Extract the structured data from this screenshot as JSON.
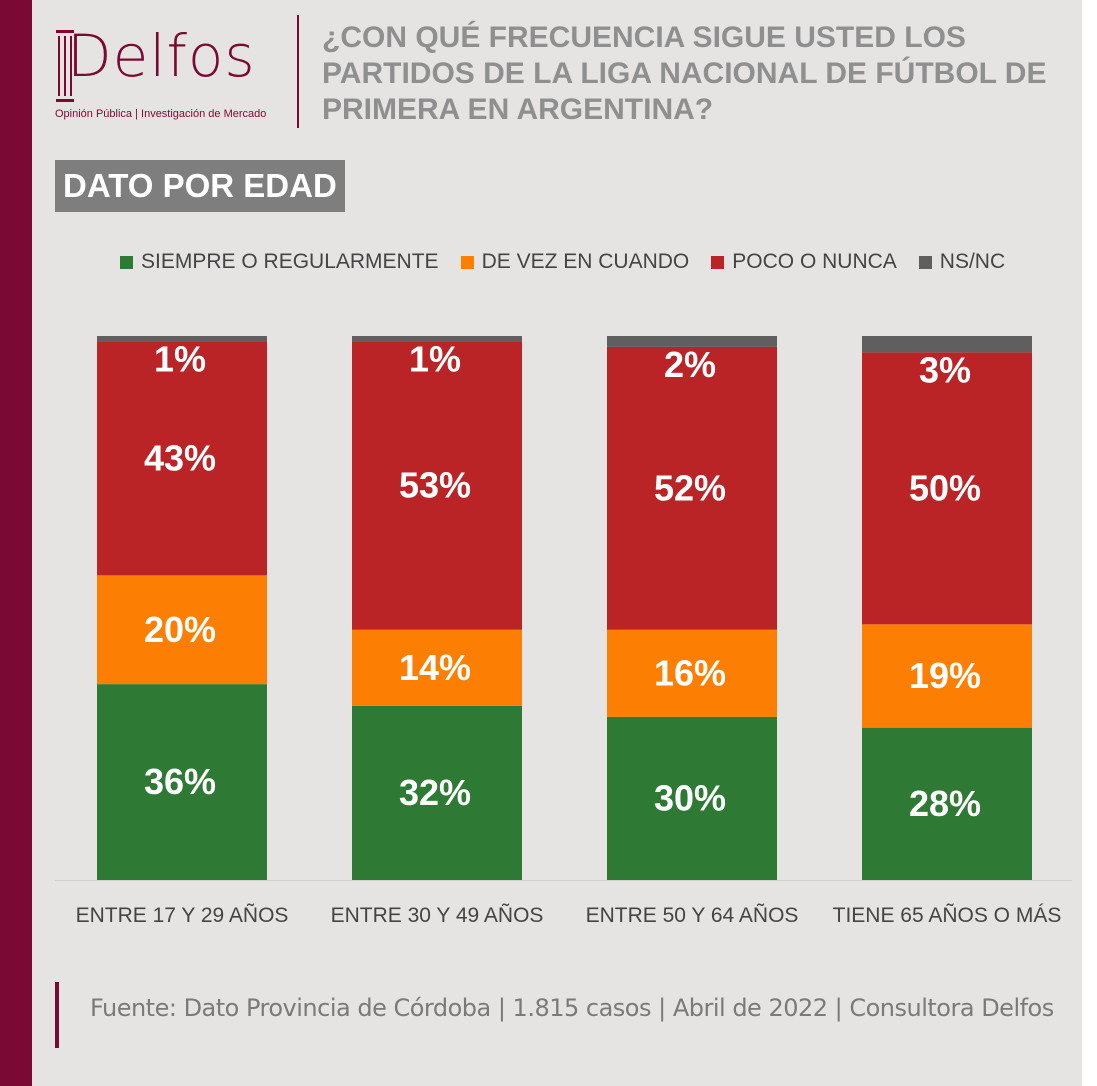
{
  "header": {
    "logo_text": "Delfos",
    "logo_subtitle": "Opinión Pública | Investigación de Mercado",
    "title": "¿CON QUÉ FRECUENCIA SIGUE USTED LOS PARTIDOS DE LA LIGA NACIONAL DE FÚTBOL DE PRIMERA EN ARGENTINA?",
    "badge": "DATO POR EDAD"
  },
  "chart_data": {
    "type": "bar",
    "stacked": true,
    "title": "¿CON QUÉ FRECUENCIA SIGUE USTED LOS PARTIDOS DE LA LIGA NACIONAL DE FÚTBOL DE PRIMERA EN ARGENTINA?",
    "xlabel": "",
    "ylabel": "",
    "ylim": [
      0,
      100
    ],
    "legend_position": "top",
    "categories": [
      "ENTRE 17 Y 29 AÑOS",
      "ENTRE 30 Y 49 AÑOS",
      "ENTRE 50 Y 64 AÑOS",
      "TIENE 65 AÑOS O MÁS"
    ],
    "series": [
      {
        "name": "SIEMPRE O REGULARMENTE",
        "color": "#2e7a34",
        "values": [
          36,
          32,
          30,
          28
        ]
      },
      {
        "name": "DE VEZ EN CUANDO",
        "color": "#fc7f03",
        "values": [
          20,
          14,
          16,
          19
        ]
      },
      {
        "name": "POCO O NUNCA",
        "color": "#bb2427",
        "values": [
          43,
          53,
          52,
          50
        ]
      },
      {
        "name": "NS/NC",
        "color": "#5f5f5f",
        "values": [
          1,
          1,
          2,
          3
        ]
      }
    ],
    "data_label_suffix": "%"
  },
  "footer": {
    "source": "Fuente: Dato Provincia de Córdoba | 1.815 casos | Abril de 2022 | Consultora Delfos"
  }
}
